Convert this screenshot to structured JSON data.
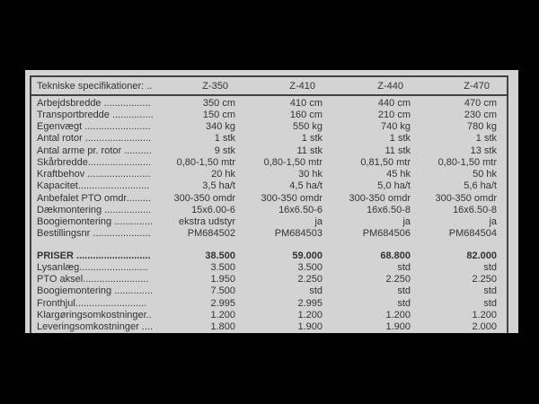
{
  "colors": {
    "background": "#000000",
    "panel": "#d3d3d3",
    "table_border": "#414141",
    "text": "#333333"
  },
  "table": {
    "header": {
      "label": "Tekniske specifikationer: ..",
      "columns": [
        "Z-350",
        "Z-410",
        "Z-440",
        "Z-470"
      ]
    },
    "spec_rows": [
      {
        "label": "Arbejdsbredde .................",
        "values": [
          "350 cm",
          "410 cm",
          "440 cm",
          "470 cm"
        ]
      },
      {
        "label": "Transportbredde ...............",
        "values": [
          "150 cm",
          "160 cm",
          "210 cm",
          "230 cm"
        ]
      },
      {
        "label": "Egenvægt ........................",
        "values": [
          "340 kg",
          "550 kg",
          "740 kg",
          "780 kg"
        ]
      },
      {
        "label": "Antal rotor ........................",
        "values": [
          "1 stk",
          "1 stk",
          "1 stk",
          "1 stk"
        ]
      },
      {
        "label": "Antal arme pr. rotor ..........",
        "values": [
          "9 stk",
          "11 stk",
          "11 stk",
          "13 stk"
        ]
      },
      {
        "label": "Skårbredde.......................",
        "values": [
          "0,80-1,50 mtr",
          "0,80-1,50 mtr",
          "0,81,50 mtr",
          "0,80-1,50 mtr"
        ]
      },
      {
        "label": "Kraftbehov .......................",
        "values": [
          "20 hk",
          "30 hk",
          "45 hk",
          "50 hk"
        ]
      },
      {
        "label": "Kapacitet..........................",
        "values": [
          "3,5 ha/t",
          "4,5 ha/t",
          "5,0 ha/t",
          "5,6 ha/t"
        ]
      },
      {
        "label": "Anbefalet PTO omdr.........",
        "values": [
          "300-350 omdr",
          "300-350 omdr",
          "300-350 omdr",
          "300-350 omdr"
        ]
      },
      {
        "label": "Dækmontering .................",
        "values": [
          "15x6.00-6",
          "16x6.50-6",
          "16x6.50-8",
          "16x6.50-8"
        ]
      },
      {
        "label": "Boogiemontering ..............",
        "values": [
          "ekstra udstyr",
          "ja",
          "ja",
          "ja"
        ]
      },
      {
        "label": "Bestillingsnr .....................",
        "values": [
          "PM684502",
          "PM684503",
          "PM684506",
          "PM684504"
        ]
      }
    ],
    "price_rows": [
      {
        "label": "PRISER ...........................",
        "values": [
          "38.500",
          "59.000",
          "68.800",
          "82.000"
        ],
        "bold": true
      },
      {
        "label": "Lysanlæg.........................",
        "values": [
          "3.500",
          "3.500",
          "std",
          "std"
        ]
      },
      {
        "label": "PTO aksel........................",
        "values": [
          "1.950",
          "2.250",
          "2.250",
          "2.250"
        ]
      },
      {
        "label": "Boogiemontering ..............",
        "values": [
          "7.500",
          "std",
          "std",
          "std"
        ]
      },
      {
        "label": "Fronthjul..........................",
        "values": [
          "2.995",
          "2.995",
          "std",
          "std"
        ]
      },
      {
        "label": "Klargøringsomkostninger..",
        "values": [
          "1.200",
          "1.200",
          "1.200",
          "1.200"
        ]
      },
      {
        "label": "Leveringsomkostninger ....",
        "values": [
          "1.800",
          "1.900",
          "1.900",
          "2.000"
        ]
      }
    ]
  }
}
